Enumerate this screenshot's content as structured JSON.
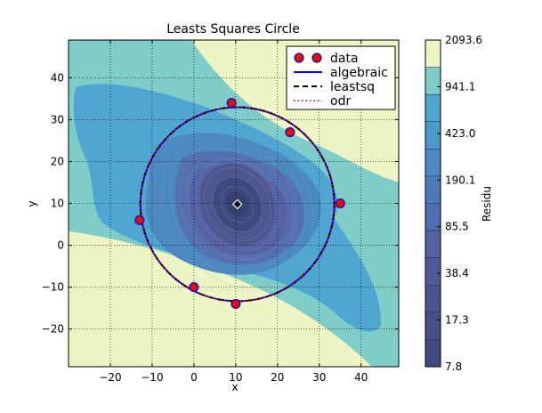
{
  "chart_data": {
    "type": "contour",
    "title": "Leasts Squares Circle",
    "xlabel": "x",
    "ylabel": "y",
    "xlim": [
      -30,
      49
    ],
    "ylim": [
      -29,
      49
    ],
    "xticks": [
      -20,
      -10,
      0,
      10,
      20,
      30,
      40
    ],
    "yticks": [
      -20,
      -10,
      0,
      10,
      20,
      30,
      40
    ],
    "grid": true,
    "legend_position": "top-right",
    "data_points": {
      "name": "data",
      "x": [
        9,
        23,
        35,
        -13,
        0,
        10
      ],
      "y": [
        34,
        27,
        10,
        6,
        -10,
        -14
      ],
      "color": "#ff0000"
    },
    "fitted_circle": {
      "center": [
        10.4,
        9.8
      ],
      "radius": 23.2
    },
    "series": [
      {
        "name": "data",
        "style": "red circle marker"
      },
      {
        "name": "algebraic",
        "style": "solid",
        "color": "#0000ff"
      },
      {
        "name": "leastsq",
        "style": "dashed",
        "color": "#000000"
      },
      {
        "name": "odr",
        "style": "dotted",
        "color": "#ff0000"
      }
    ],
    "colorbar": {
      "label": "Residu",
      "levels": [
        "7.8",
        "17.3",
        "38.4",
        "85.5",
        "190.1",
        "423.0",
        "941.1",
        "2093.6"
      ]
    },
    "colors": {
      "level_outer": "#eef5c4",
      "level_2": "#7fcdc8",
      "level_3": "#4fa6d1",
      "level_4": "#4c89c2",
      "level_5": "#5570ae",
      "level_6": "#5562a3",
      "level_7": "#4e558f",
      "level_8": "#3e4a7f"
    }
  }
}
